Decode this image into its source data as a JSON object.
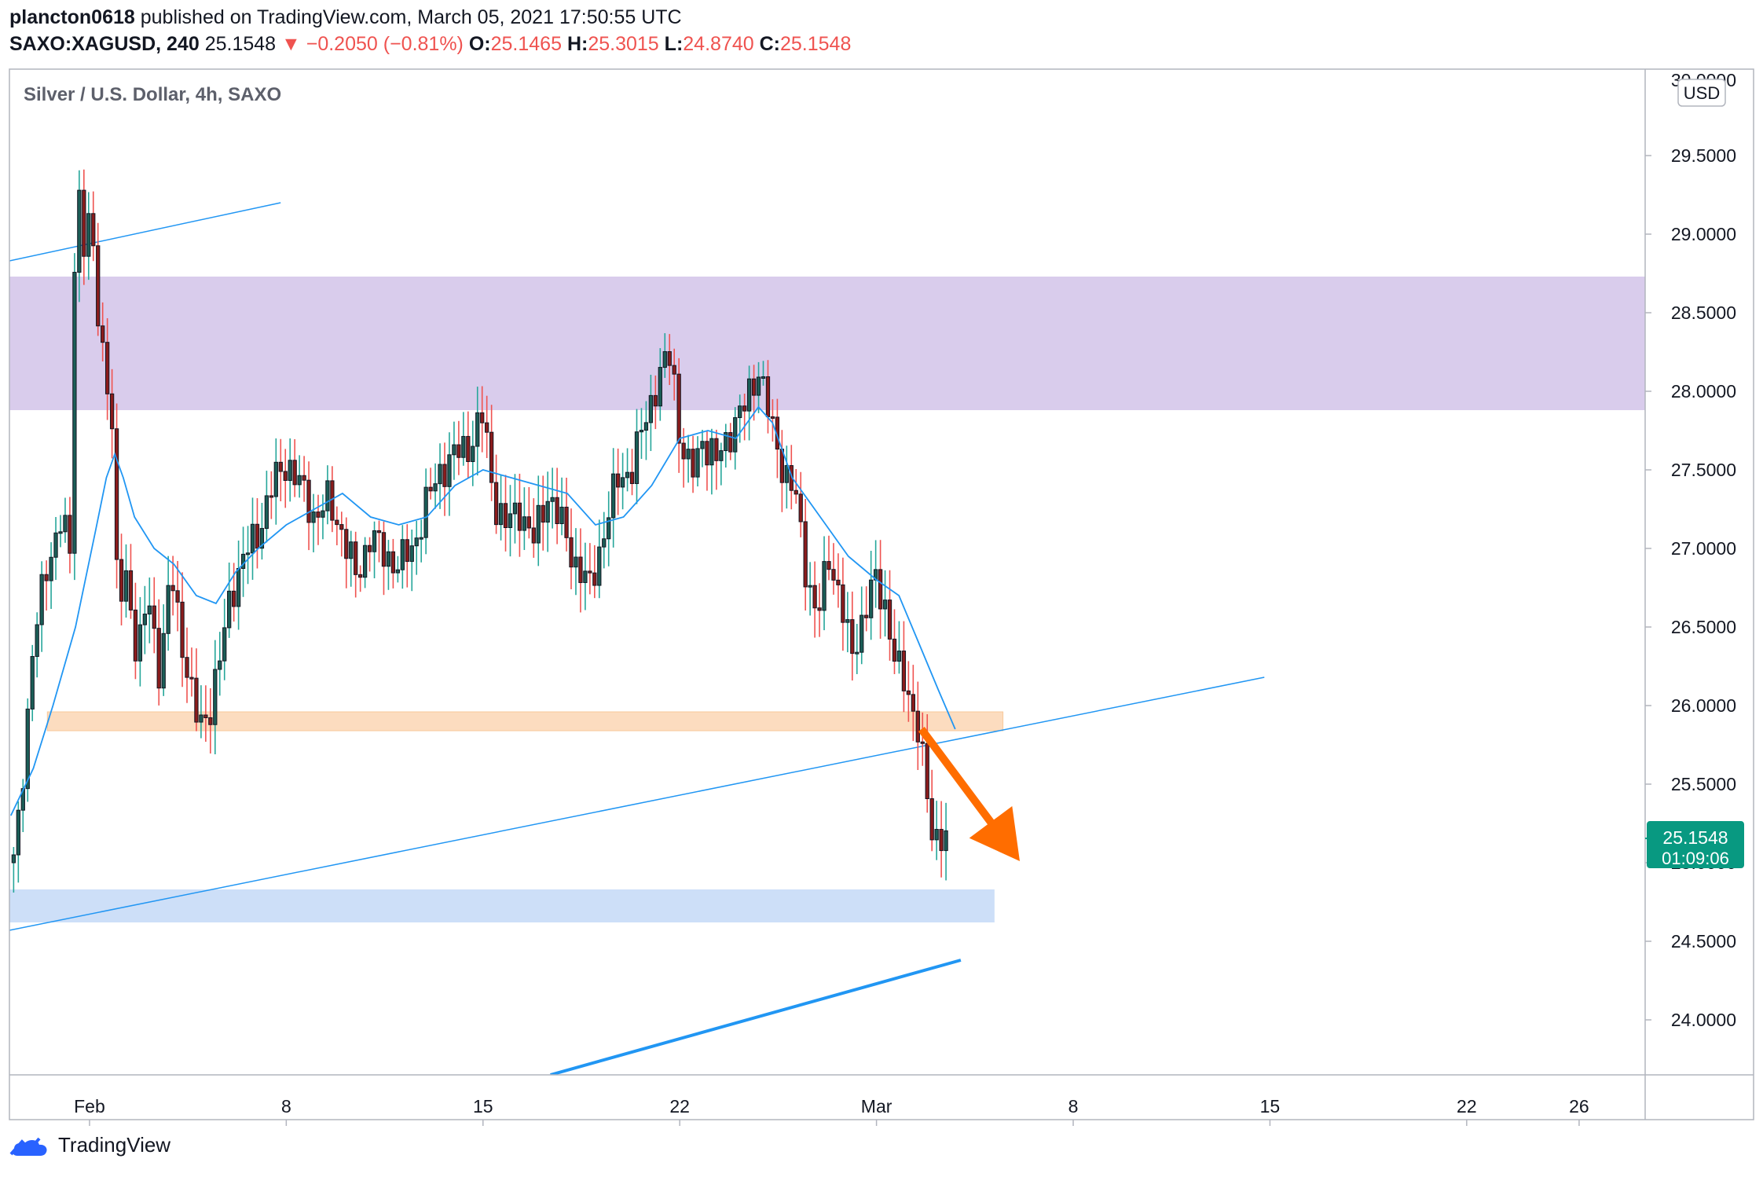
{
  "header": {
    "user": "plancton0618",
    "published": "published on TradingView.com, March 05, 2021 17:50:55 UTC",
    "symbol": "SAXO:XAGUSD, 240",
    "last": "25.1548",
    "down_arrow": "▼",
    "change": "−0.2050 (−0.81%)",
    "o_label": "O:",
    "o_value": "25.1465",
    "h_label": "H:",
    "h_value": "25.3015",
    "l_label": "L:",
    "l_value": "24.8740",
    "c_label": "C:",
    "c_value": "25.1548"
  },
  "footer": {
    "brand": "TradingView",
    "logo_icon": "tradingview-logo-icon"
  },
  "chart_data": {
    "type": "candlestick",
    "title": "Silver / U.S. Dollar, 4h, SAXO",
    "currency": "USD",
    "ylim": [
      23.65,
      30.05
    ],
    "y_ticks": [
      "29.5000",
      "29.0000",
      "28.5000",
      "28.0000",
      "27.5000",
      "27.0000",
      "26.5000",
      "26.0000",
      "25.5000",
      "25.0000",
      "24.5000",
      "24.0000"
    ],
    "y_tick_partial": "30.0000",
    "x_ticks": [
      {
        "label": "Feb",
        "day": 1
      },
      {
        "label": "8",
        "day": 8
      },
      {
        "label": "15",
        "day": 15
      },
      {
        "label": "22",
        "day": 22
      },
      {
        "label": "Mar",
        "day": 29
      },
      {
        "label": "8",
        "day": 36
      },
      {
        "label": "15",
        "day": 43
      },
      {
        "label": "22",
        "day": 50
      },
      {
        "label": "26",
        "day": 54
      }
    ],
    "xlim_days": [
      -1.85,
      56.35
    ],
    "price_label": {
      "value": "25.1548",
      "countdown": "01:09:06",
      "color": "#089981"
    },
    "close_points": [
      [
        -1.7,
        25.0
      ],
      [
        -1.5,
        25.3
      ],
      [
        -1.0,
        26.4
      ],
      [
        -0.5,
        26.9
      ],
      [
        0.0,
        27.2
      ],
      [
        0.3,
        26.95
      ],
      [
        0.4,
        28.6
      ],
      [
        0.6,
        29.3
      ],
      [
        0.8,
        28.95
      ],
      [
        1.0,
        29.1
      ],
      [
        1.3,
        28.5
      ],
      [
        1.6,
        28.1
      ],
      [
        1.8,
        27.8
      ],
      [
        2.0,
        26.6
      ],
      [
        2.3,
        26.85
      ],
      [
        2.7,
        26.3
      ],
      [
        3.1,
        26.7
      ],
      [
        3.5,
        26.2
      ],
      [
        3.9,
        26.85
      ],
      [
        4.3,
        26.4
      ],
      [
        4.6,
        26.1
      ],
      [
        4.9,
        25.85
      ],
      [
        5.3,
        26.0
      ],
      [
        5.7,
        26.35
      ],
      [
        6.0,
        26.7
      ],
      [
        6.5,
        26.95
      ],
      [
        7.0,
        27.1
      ],
      [
        7.5,
        27.4
      ],
      [
        8.0,
        27.55
      ],
      [
        8.5,
        27.4
      ],
      [
        9.0,
        27.2
      ],
      [
        9.5,
        27.3
      ],
      [
        10.0,
        27.1
      ],
      [
        10.5,
        26.8
      ],
      [
        11.0,
        27.1
      ],
      [
        11.5,
        26.95
      ],
      [
        12.0,
        26.9
      ],
      [
        12.5,
        27.0
      ],
      [
        13.0,
        27.3
      ],
      [
        13.5,
        27.5
      ],
      [
        14.0,
        27.6
      ],
      [
        14.5,
        27.65
      ],
      [
        15.0,
        27.85
      ],
      [
        15.4,
        27.3
      ],
      [
        15.8,
        27.15
      ],
      [
        16.3,
        27.25
      ],
      [
        16.8,
        27.05
      ],
      [
        17.3,
        27.35
      ],
      [
        17.8,
        27.15
      ],
      [
        18.3,
        26.9
      ],
      [
        18.8,
        26.75
      ],
      [
        19.3,
        27.1
      ],
      [
        19.8,
        27.45
      ],
      [
        20.3,
        27.5
      ],
      [
        20.8,
        27.85
      ],
      [
        21.3,
        28.1
      ],
      [
        21.7,
        28.25
      ],
      [
        22.0,
        27.7
      ],
      [
        22.4,
        27.45
      ],
      [
        22.8,
        27.7
      ],
      [
        23.3,
        27.55
      ],
      [
        23.8,
        27.75
      ],
      [
        24.3,
        27.9
      ],
      [
        24.8,
        28.15
      ],
      [
        25.3,
        27.75
      ],
      [
        25.7,
        27.5
      ],
      [
        26.1,
        27.35
      ],
      [
        26.5,
        26.85
      ],
      [
        26.9,
        26.55
      ],
      [
        27.3,
        26.95
      ],
      [
        27.7,
        26.7
      ],
      [
        28.1,
        26.3
      ],
      [
        28.5,
        26.55
      ],
      [
        28.9,
        26.8
      ],
      [
        29.3,
        26.65
      ],
      [
        29.7,
        26.25
      ],
      [
        30.1,
        26.1
      ],
      [
        30.5,
        25.85
      ],
      [
        30.8,
        25.4
      ],
      [
        31.0,
        25.15
      ],
      [
        31.3,
        25.2
      ],
      [
        31.5,
        25.15
      ]
    ],
    "ema_points": [
      [
        -1.8,
        25.3
      ],
      [
        -1.0,
        25.6
      ],
      [
        -0.3,
        26.0
      ],
      [
        0.5,
        26.5
      ],
      [
        1.2,
        27.1
      ],
      [
        1.6,
        27.45
      ],
      [
        1.9,
        27.6
      ],
      [
        2.2,
        27.45
      ],
      [
        2.6,
        27.2
      ],
      [
        3.3,
        27.0
      ],
      [
        4.0,
        26.9
      ],
      [
        4.8,
        26.7
      ],
      [
        5.5,
        26.65
      ],
      [
        6.2,
        26.85
      ],
      [
        7.0,
        27.0
      ],
      [
        8.0,
        27.15
      ],
      [
        9.0,
        27.25
      ],
      [
        10.0,
        27.35
      ],
      [
        11.0,
        27.2
      ],
      [
        12.0,
        27.15
      ],
      [
        13.0,
        27.2
      ],
      [
        14.0,
        27.4
      ],
      [
        15.0,
        27.5
      ],
      [
        16.0,
        27.45
      ],
      [
        17.0,
        27.4
      ],
      [
        18.0,
        27.35
      ],
      [
        19.0,
        27.15
      ],
      [
        20.0,
        27.2
      ],
      [
        21.0,
        27.4
      ],
      [
        22.0,
        27.7
      ],
      [
        23.0,
        27.75
      ],
      [
        24.0,
        27.7
      ],
      [
        24.8,
        27.9
      ],
      [
        25.3,
        27.8
      ],
      [
        26.0,
        27.45
      ],
      [
        27.0,
        27.2
      ],
      [
        28.0,
        26.95
      ],
      [
        29.0,
        26.8
      ],
      [
        29.8,
        26.7
      ],
      [
        30.5,
        26.4
      ],
      [
        31.2,
        26.1
      ],
      [
        31.8,
        25.85
      ]
    ],
    "zones": [
      {
        "name": "resistance-zone",
        "from_day": -1.85,
        "to_day": 56.35,
        "y_from": 27.88,
        "y_to": 28.73,
        "color": "#d9ccec"
      },
      {
        "name": "support-zone",
        "from_day": -0.5,
        "to_day": 33.5,
        "y_from": 25.84,
        "y_to": 25.96,
        "color": "#fcdcbf"
      },
      {
        "name": "target-zone",
        "from_day": -1.85,
        "to_day": 33.2,
        "y_from": 24.62,
        "y_to": 24.83,
        "color": "#cddff8"
      }
    ],
    "trendlines": [
      {
        "name": "upper-trendline",
        "points": [
          [
            -1.85,
            28.83
          ],
          [
            7.8,
            29.2
          ]
        ],
        "width": 1.5
      },
      {
        "name": "rising-trendline",
        "points": [
          [
            -1.85,
            24.57
          ],
          [
            42.8,
            26.18
          ]
        ],
        "width": 1.5
      },
      {
        "name": "lower-trendline",
        "points": [
          [
            17.4,
            23.65
          ],
          [
            32.0,
            24.38
          ]
        ],
        "width": 4
      }
    ],
    "arrow": {
      "from": [
        30.6,
        25.85
      ],
      "to": [
        34.1,
        25.01
      ],
      "color": "#ff6d00"
    }
  }
}
